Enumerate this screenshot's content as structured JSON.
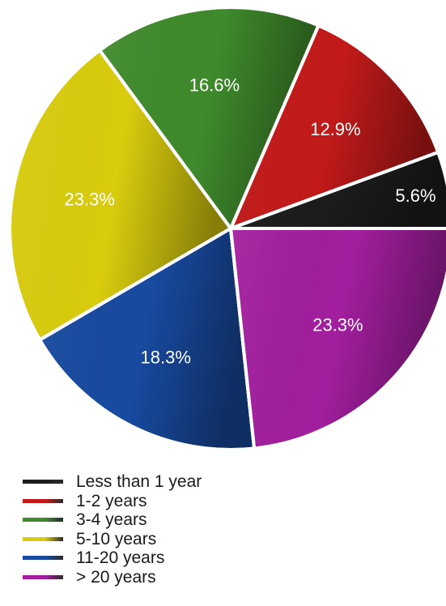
{
  "chart_data": {
    "type": "pie",
    "start_angle_deg": 0,
    "direction": "counterclockwise",
    "slices": [
      {
        "name": "Less than 1 year",
        "value": 5.6,
        "label": "5.6%",
        "color": "#1c1c1c"
      },
      {
        "name": "1-2 years",
        "value": 12.9,
        "label": "12.9%",
        "color": "#c21a1a"
      },
      {
        "name": "3-4 years",
        "value": 16.6,
        "label": "16.6%",
        "color": "#3f8a2c"
      },
      {
        "name": "5-10 years",
        "value": 23.3,
        "label": "23.3%",
        "color": "#d9cc0e"
      },
      {
        "name": "11-20 years",
        "value": 18.3,
        "label": "18.3%",
        "color": "#184aa0"
      },
      {
        "name": "> 20 years",
        "value": 23.3,
        "label": "23.3%",
        "color": "#a21e9e"
      }
    ],
    "legend_position": "bottom-left"
  }
}
